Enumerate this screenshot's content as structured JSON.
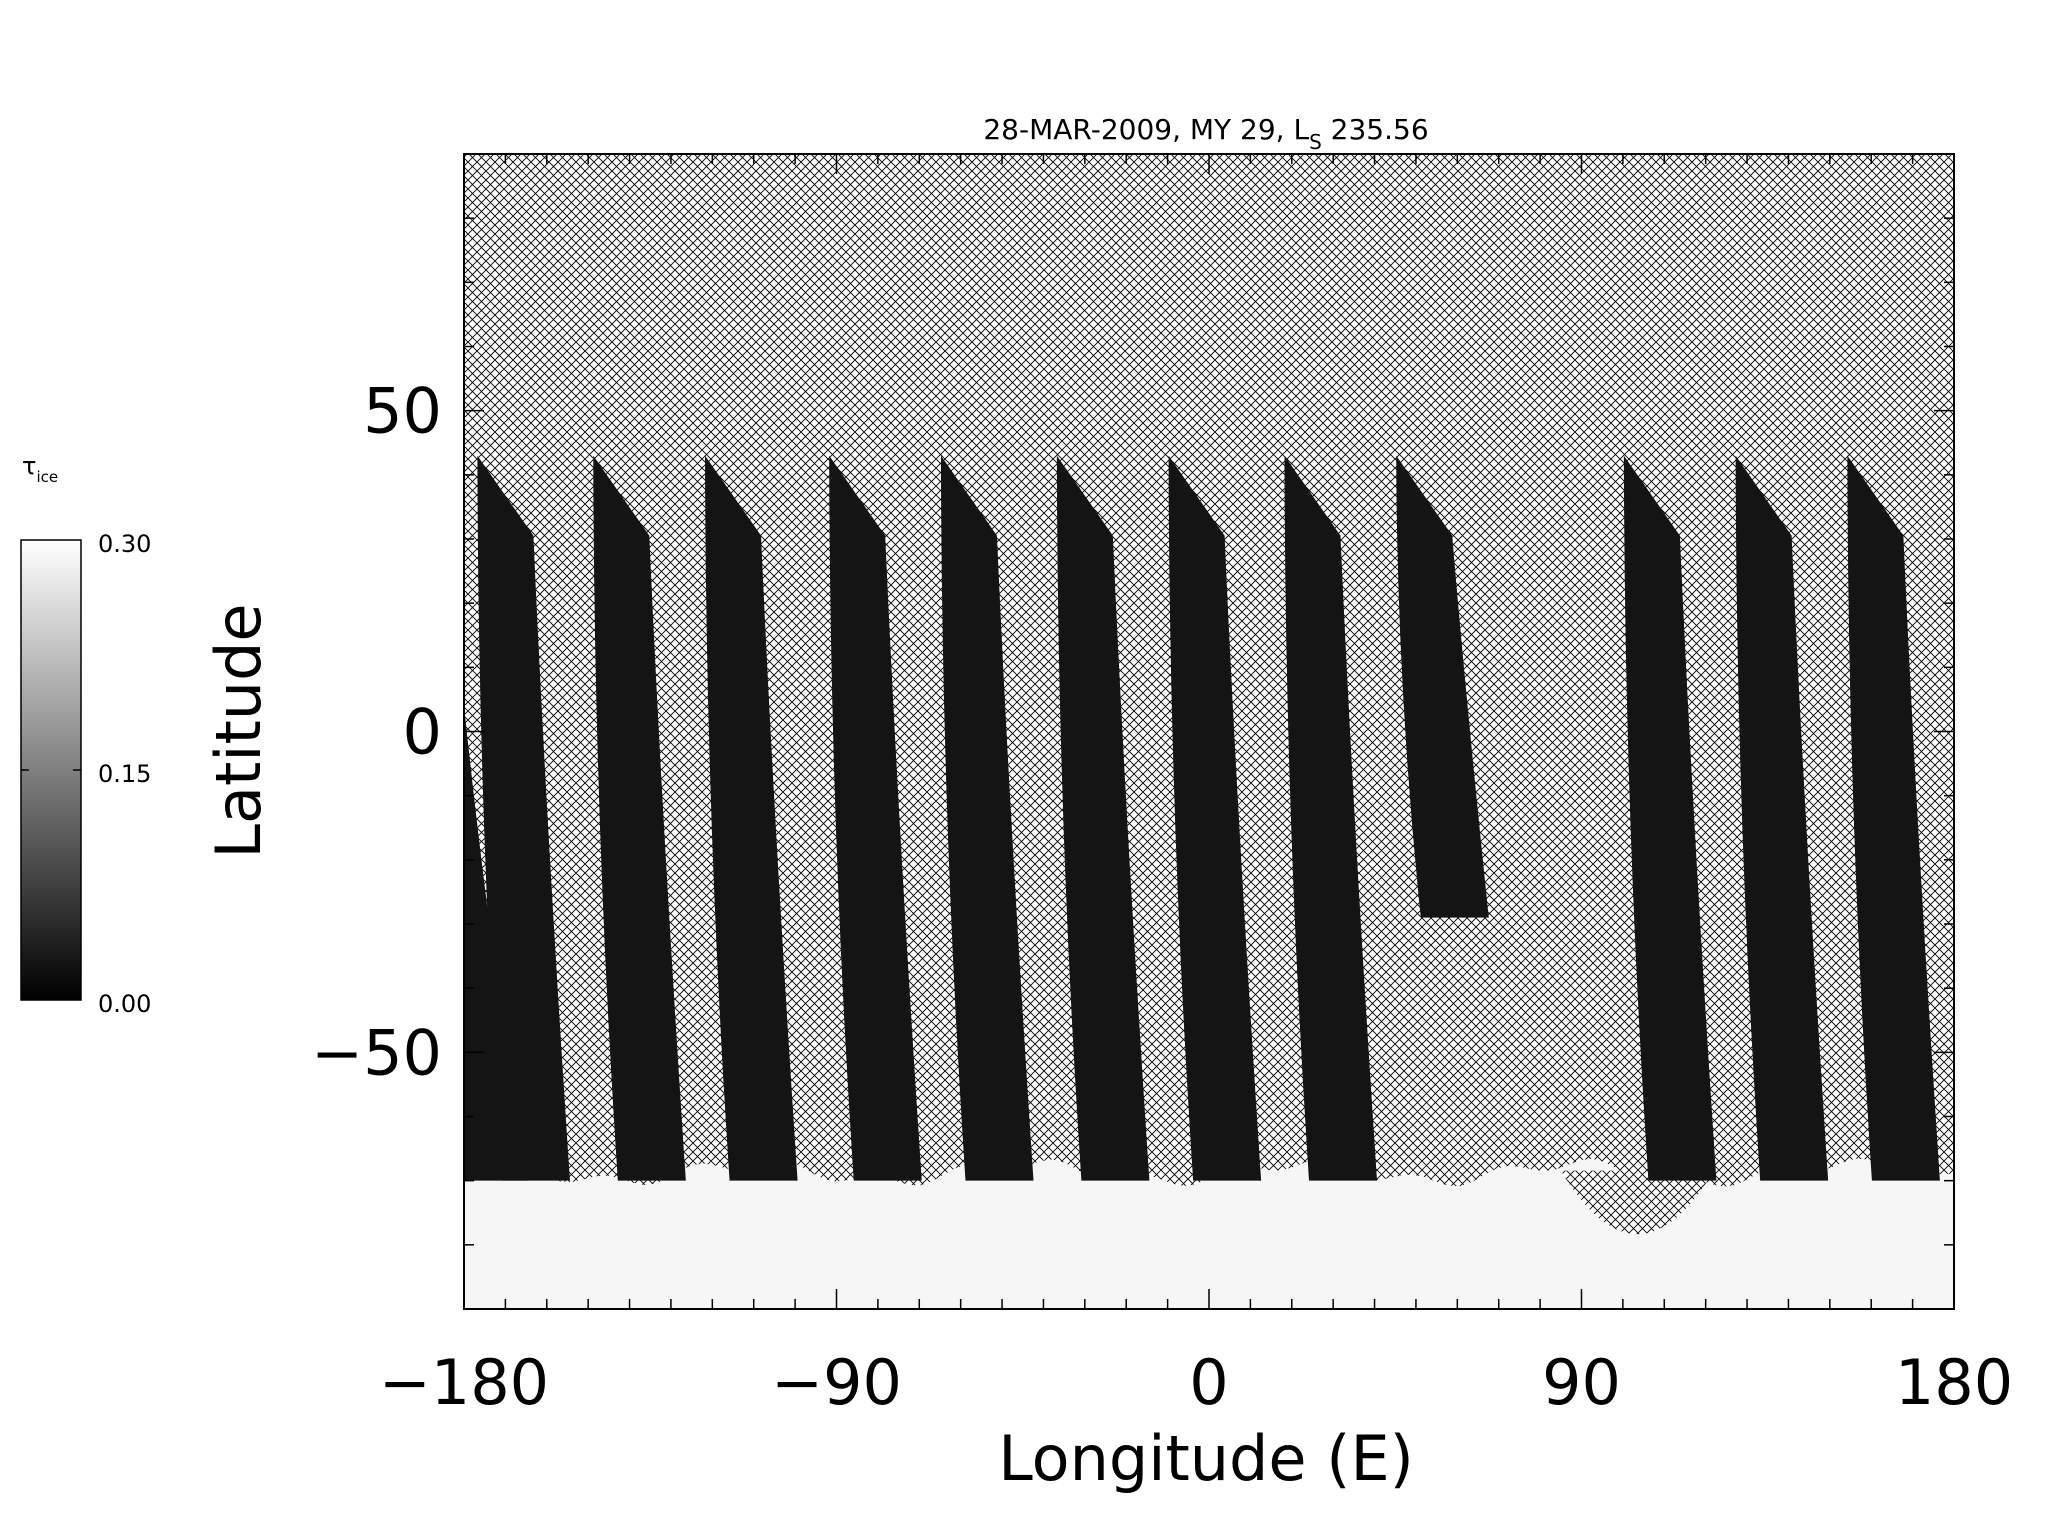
{
  "chart_data": {
    "type": "heatmap",
    "title": "28-MAR-2009, MY 29,  L",
    "title_subscript": "S",
    "title_suffix": " 235.56",
    "xlabel": "Longitude (E)",
    "ylabel": "Latitude",
    "xlim": [
      -180,
      180
    ],
    "ylim": [
      -90,
      90
    ],
    "x_ticks": [
      -180,
      -90,
      0,
      90,
      180
    ],
    "y_ticks": [
      -50,
      0,
      50
    ],
    "x_tick_labels": [
      "−180",
      "−90",
      "0",
      "90",
      "180"
    ],
    "y_tick_labels": [
      "−50",
      "0",
      "50"
    ],
    "colorbar": {
      "label": "τ",
      "label_subscript": "ice",
      "min": 0.0,
      "max": 0.3,
      "ticks": [
        "0.30",
        "0.15",
        "0.00"
      ],
      "colormap": "grayscale"
    },
    "swaths": [
      {
        "lon_top": -170,
        "lon_bottom": -166,
        "lat_top": 43,
        "lat_bottom": -70
      },
      {
        "lon_top": -142,
        "lon_bottom": -138,
        "lat_top": 43,
        "lat_bottom": -70
      },
      {
        "lon_top": -115,
        "lon_bottom": -111,
        "lat_top": 43,
        "lat_bottom": -70
      },
      {
        "lon_top": -85,
        "lon_bottom": -81,
        "lat_top": 43,
        "lat_bottom": -70
      },
      {
        "lon_top": -58,
        "lon_bottom": -54,
        "lat_top": 43,
        "lat_bottom": -70
      },
      {
        "lon_top": -30,
        "lon_bottom": -26,
        "lat_top": 43,
        "lat_bottom": -70
      },
      {
        "lon_top": -3,
        "lon_bottom": 1,
        "lat_top": 43,
        "lat_bottom": -70
      },
      {
        "lon_top": 25,
        "lon_bottom": 29,
        "lat_top": 43,
        "lat_bottom": -70
      },
      {
        "lon_top": 52,
        "lon_bottom": 56,
        "lat_top": 43,
        "lat_bottom": -29
      },
      {
        "lon_top": 107,
        "lon_bottom": 111,
        "lat_top": 43,
        "lat_bottom": -70
      },
      {
        "lon_top": 134,
        "lon_bottom": 138,
        "lat_top": 43,
        "lat_bottom": -70
      },
      {
        "lon_top": 161,
        "lon_bottom": 165,
        "lat_top": 43,
        "lat_bottom": -70
      }
    ],
    "polar_cap": {
      "lat_edge": -70,
      "tau_ice": 0.3
    }
  }
}
